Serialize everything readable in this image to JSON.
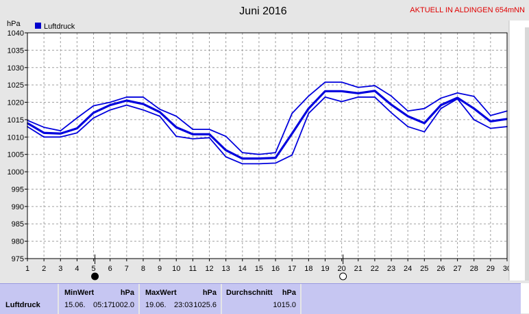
{
  "header": {
    "title": "Juni 2016",
    "station_banner": "AKTUELL IN ALDINGEN 654mNN",
    "unit": "hPa",
    "legend_label": "Luftdruck",
    "legend_color": "#0000cc"
  },
  "colors": {
    "line": "#0000dd",
    "plot_bg": "#ffffff",
    "grid": "#a0a0a0",
    "banner": "#e00000",
    "stats_bg": "#c6c6f2"
  },
  "chart_data": {
    "type": "line",
    "title": "Juni 2016",
    "ylabel": "hPa",
    "ylim": [
      975,
      1040
    ],
    "xlim": [
      1,
      30
    ],
    "grid": true,
    "legend": "top-left",
    "x": [
      1,
      2,
      3,
      4,
      5,
      6,
      7,
      8,
      9,
      10,
      11,
      12,
      13,
      14,
      15,
      16,
      17,
      18,
      19,
      20,
      21,
      22,
      23,
      24,
      25,
      26,
      27,
      28,
      29,
      30
    ],
    "xticks": [
      1,
      2,
      3,
      4,
      5,
      6,
      7,
      8,
      9,
      10,
      11,
      12,
      13,
      14,
      15,
      16,
      17,
      18,
      19,
      20,
      21,
      22,
      23,
      24,
      25,
      26,
      27,
      28,
      29,
      30
    ],
    "yticks": [
      975,
      980,
      985,
      990,
      995,
      1000,
      1005,
      1010,
      1015,
      1020,
      1025,
      1030,
      1035,
      1040
    ],
    "series": [
      {
        "name": "Luftdruck",
        "values": [
          1014.8,
          1012.8,
          1011.8,
          1015.5,
          1019,
          1020,
          1021.5,
          1021.5,
          1018,
          1016,
          1012.2,
          1012.2,
          1010.2,
          1005.5,
          1005,
          1005.5,
          1016.8,
          1021.8,
          1025.8,
          1025.8,
          1024.3,
          1024.8,
          1021.8,
          1017.5,
          1018.2,
          1021.2,
          1022.7,
          1021.7,
          1016.2,
          1017.5
        ],
        "width": 1.8
      },
      {
        "name": "Luftdruck",
        "values": [
          1014,
          1011.2,
          1011,
          1012.5,
          1017,
          1019.2,
          1020.5,
          1019.5,
          1017.2,
          1012.8,
          1010.8,
          1010.8,
          1006.2,
          1003.8,
          1003.8,
          1004,
          1011,
          1018.2,
          1023.2,
          1023.2,
          1022.6,
          1023.3,
          1019.3,
          1016,
          1014,
          1019.2,
          1021.3,
          1018.2,
          1014.5,
          1015.2
        ],
        "width": 3.2
      },
      {
        "name": "Luftdruck",
        "values": [
          1013,
          1010,
          1010,
          1011.2,
          1015.5,
          1017.8,
          1019.2,
          1017.8,
          1016,
          1010.2,
          1009.5,
          1009.8,
          1004.3,
          1002.3,
          1002.3,
          1002.5,
          1004.8,
          1016.8,
          1021.5,
          1020.2,
          1021.5,
          1021.5,
          1017,
          1013,
          1011.5,
          1018.2,
          1021,
          1015,
          1012.5,
          1013
        ]
      }
    ],
    "moon_phases": [
      {
        "x": 5,
        "phase": "new"
      },
      {
        "x": 20,
        "phase": "full"
      }
    ]
  },
  "stats": {
    "row_label": "Luftdruck",
    "min": {
      "label": "MinWert",
      "unit": "hPa",
      "date": "15.06.",
      "time": "05:17",
      "value": "1002.0"
    },
    "max": {
      "label": "MaxWert",
      "unit": "hPa",
      "date": "19.06.",
      "time": "23:03",
      "value": "1025.6"
    },
    "avg": {
      "label": "Durchschnitt",
      "unit": "hPa",
      "value": "1015.0"
    }
  }
}
